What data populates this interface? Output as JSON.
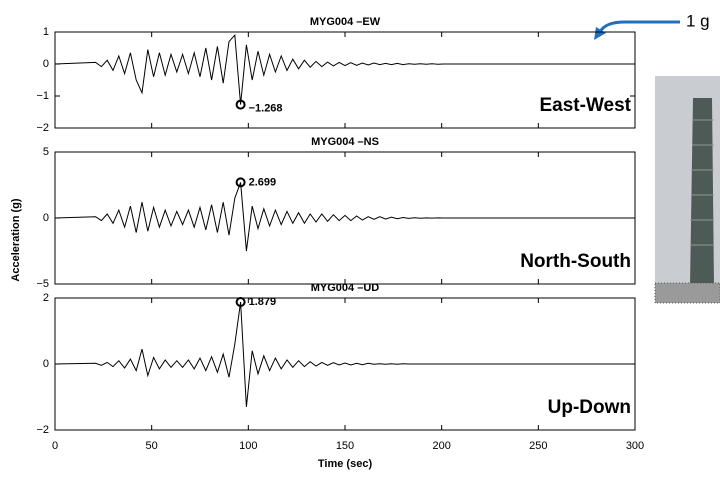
{
  "chart_data": [
    {
      "type": "line",
      "title": "MYG004 –EW",
      "corner_label": "East-West",
      "color": "#000000",
      "x": [
        0,
        21,
        24,
        27,
        30,
        33,
        36,
        39,
        42,
        45,
        48,
        51,
        54,
        57,
        60,
        63,
        66,
        69,
        72,
        75,
        78,
        81,
        84,
        87,
        90,
        93,
        96,
        99,
        102,
        105,
        108,
        111,
        114,
        117,
        120,
        123,
        126,
        129,
        132,
        135,
        138,
        141,
        144,
        147,
        150,
        153,
        156,
        159,
        162,
        165,
        168,
        171,
        174,
        177,
        180,
        183,
        186,
        189,
        192,
        195,
        198,
        201,
        300
      ],
      "values": [
        0,
        0.05,
        -0.08,
        0.12,
        -0.2,
        0.25,
        -0.3,
        0.35,
        -0.5,
        -0.9,
        0.45,
        -0.4,
        0.35,
        -0.35,
        0.3,
        -0.25,
        0.3,
        -0.3,
        0.35,
        -0.4,
        0.5,
        -0.5,
        0.55,
        -0.6,
        0.7,
        0.9,
        -1.268,
        0.6,
        -0.5,
        0.4,
        -0.35,
        0.3,
        -0.25,
        0.25,
        -0.2,
        0.15,
        -0.15,
        0.12,
        -0.1,
        0.08,
        -0.08,
        0.06,
        -0.06,
        0.05,
        -0.05,
        0.04,
        -0.04,
        0.03,
        -0.03,
        0.03,
        -0.02,
        0.02,
        -0.02,
        0.02,
        -0.02,
        0.01,
        -0.01,
        0.01,
        -0.01,
        0.01,
        -0.01,
        0,
        0
      ],
      "annotation": {
        "x": 96,
        "y": -1.268,
        "label": "−1.268"
      },
      "xlim": [
        0,
        300
      ],
      "xticks": [
        0,
        50,
        100,
        150,
        200,
        250,
        300
      ],
      "ylim": [
        -2,
        1
      ],
      "yticks": [
        {
          "value": -2,
          "label": "−2"
        },
        {
          "value": -1,
          "label": "−1"
        },
        0,
        1
      ]
    },
    {
      "type": "line",
      "title": "MYG004 –NS",
      "corner_label": "North-South",
      "color": "#000000",
      "ylabel": "Acceleration (g)",
      "x": [
        0,
        21,
        24,
        27,
        30,
        33,
        36,
        39,
        42,
        45,
        48,
        51,
        54,
        57,
        60,
        63,
        66,
        69,
        72,
        75,
        78,
        81,
        84,
        87,
        90,
        93,
        96,
        99,
        102,
        105,
        108,
        111,
        114,
        117,
        120,
        123,
        126,
        129,
        132,
        135,
        138,
        141,
        144,
        147,
        150,
        153,
        156,
        159,
        162,
        165,
        168,
        171,
        174,
        177,
        180,
        183,
        186,
        189,
        192,
        195,
        198,
        201,
        300
      ],
      "values": [
        0,
        0.1,
        -0.2,
        0.3,
        -0.4,
        0.6,
        -0.7,
        0.9,
        -1.1,
        1.2,
        -1.0,
        0.8,
        -0.7,
        0.6,
        -0.6,
        0.5,
        -0.5,
        0.6,
        -0.7,
        0.8,
        -0.9,
        1.0,
        -1.1,
        1.2,
        -1.3,
        1.5,
        2.699,
        -2.5,
        0.9,
        -0.8,
        0.7,
        -0.6,
        0.6,
        -0.5,
        0.5,
        -0.4,
        0.4,
        -0.4,
        0.3,
        -0.3,
        0.3,
        -0.25,
        0.25,
        -0.2,
        0.2,
        -0.2,
        0.15,
        -0.15,
        0.1,
        -0.1,
        0.1,
        -0.08,
        0.06,
        -0.05,
        0.04,
        -0.03,
        0.02,
        -0.02,
        0.01,
        -0.01,
        0.01,
        0,
        0
      ],
      "annotation": {
        "x": 96,
        "y": 2.699,
        "label": "2.699"
      },
      "xlim": [
        0,
        300
      ],
      "xticks": [
        0,
        50,
        100,
        150,
        200,
        250,
        300
      ],
      "ylim": [
        -5,
        5
      ],
      "yticks": [
        {
          "value": -5,
          "label": "−5"
        },
        0,
        5
      ]
    },
    {
      "type": "line",
      "title": "MYG004 –UD",
      "corner_label": "Up-Down",
      "color": "#000000",
      "xlabel": "Time (sec)",
      "x": [
        0,
        21,
        24,
        27,
        30,
        33,
        36,
        39,
        42,
        45,
        48,
        51,
        54,
        57,
        60,
        63,
        66,
        69,
        72,
        75,
        78,
        81,
        84,
        87,
        90,
        93,
        96,
        99,
        102,
        105,
        108,
        111,
        114,
        117,
        120,
        123,
        126,
        129,
        132,
        135,
        138,
        141,
        144,
        147,
        150,
        153,
        156,
        159,
        162,
        165,
        168,
        171,
        174,
        177,
        180,
        183,
        186,
        189,
        192,
        195,
        198,
        201,
        300
      ],
      "values": [
        0,
        0.02,
        -0.04,
        0.05,
        -0.08,
        0.1,
        -0.12,
        0.15,
        -0.2,
        0.45,
        -0.35,
        0.2,
        -0.15,
        0.12,
        -0.1,
        0.1,
        -0.1,
        0.12,
        -0.15,
        0.18,
        -0.2,
        0.22,
        -0.25,
        0.3,
        -0.4,
        0.6,
        1.879,
        -1.3,
        0.4,
        -0.3,
        0.25,
        -0.2,
        0.18,
        -0.15,
        0.12,
        -0.1,
        0.1,
        -0.08,
        0.07,
        -0.06,
        0.05,
        -0.04,
        0.04,
        -0.03,
        0.03,
        -0.03,
        0.02,
        -0.02,
        0.02,
        -0.01,
        0.01,
        -0.01,
        0.01,
        -0.01,
        0.01,
        0,
        0,
        0,
        0,
        0,
        0,
        0,
        0
      ],
      "annotation": {
        "x": 96,
        "y": 1.879,
        "label": "1.879"
      },
      "xlim": [
        0,
        300
      ],
      "xticks": [
        0,
        50,
        100,
        150,
        200,
        250,
        300
      ],
      "ylim": [
        -2,
        2
      ],
      "yticks": [
        {
          "value": -2,
          "label": "−2"
        },
        0,
        2
      ]
    }
  ],
  "side_note": "1 g"
}
